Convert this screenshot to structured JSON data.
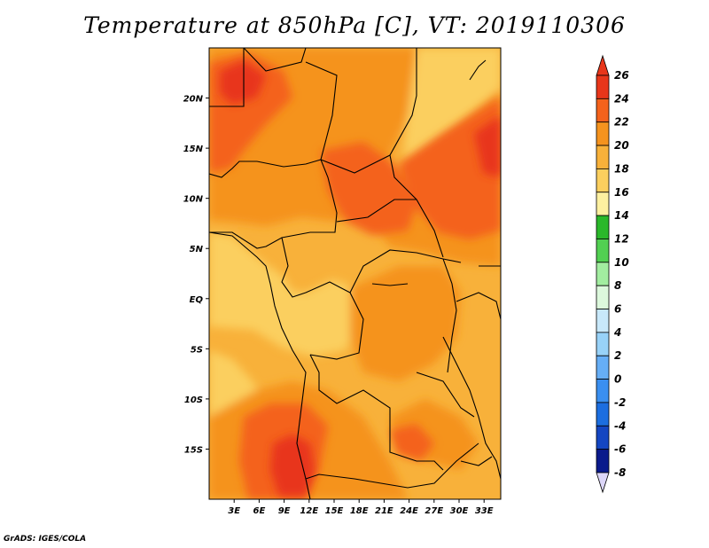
{
  "title": "Temperature at 850hPa [C], VT: 2019110306",
  "footer": "GrADS: IGES/COLA",
  "map": {
    "lon_range": [
      0,
      35
    ],
    "lat_range": [
      -20,
      25
    ],
    "lon_ticks": [
      {
        "value": 3,
        "label": "3E"
      },
      {
        "value": 6,
        "label": "6E"
      },
      {
        "value": 9,
        "label": "9E"
      },
      {
        "value": 12,
        "label": "12E"
      },
      {
        "value": 15,
        "label": "15E"
      },
      {
        "value": 18,
        "label": "18E"
      },
      {
        "value": 21,
        "label": "21E"
      },
      {
        "value": 24,
        "label": "24E"
      },
      {
        "value": 27,
        "label": "27E"
      },
      {
        "value": 30,
        "label": "30E"
      },
      {
        "value": 33,
        "label": "33E"
      }
    ],
    "lat_ticks": [
      {
        "value": 20,
        "label": "20N"
      },
      {
        "value": 15,
        "label": "15N"
      },
      {
        "value": 10,
        "label": "10N"
      },
      {
        "value": 5,
        "label": "5N"
      },
      {
        "value": 0,
        "label": "EQ"
      },
      {
        "value": -5,
        "label": "5S"
      },
      {
        "value": -10,
        "label": "10S"
      },
      {
        "value": -15,
        "label": "15S"
      }
    ]
  },
  "colorbar": {
    "levels": [
      {
        "label": "26",
        "color": "#a00000"
      },
      {
        "label": "24",
        "color": "#e8361a"
      },
      {
        "label": "22",
        "color": "#f4621c"
      },
      {
        "label": "20",
        "color": "#f5931e"
      },
      {
        "label": "18",
        "color": "#f8b13a"
      },
      {
        "label": "16",
        "color": "#fbcf5e"
      },
      {
        "label": "14",
        "color": "#fdf0a0"
      },
      {
        "label": "12",
        "color": "#2ab82a"
      },
      {
        "label": "10",
        "color": "#52d052"
      },
      {
        "label": "8",
        "color": "#a2eda0"
      },
      {
        "label": "6",
        "color": "#dcf8dc"
      },
      {
        "label": "4",
        "color": "#c8e8fa"
      },
      {
        "label": "2",
        "color": "#98d2f8"
      },
      {
        "label": "0",
        "color": "#66aef6"
      },
      {
        "label": "-2",
        "color": "#3a8ff0"
      },
      {
        "label": "-4",
        "color": "#1c6ee0"
      },
      {
        "label": "-6",
        "color": "#1446c2"
      },
      {
        "label": "-8",
        "color": "#0a1a8c"
      }
    ],
    "bottom_color": "#dcd6f8",
    "top_color": "#e8361a"
  }
}
